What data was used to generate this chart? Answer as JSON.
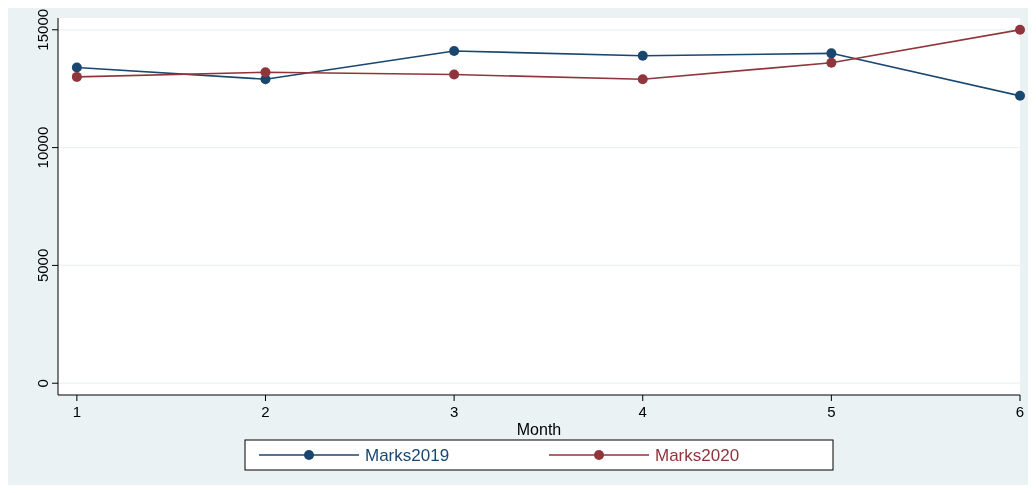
{
  "chart_data": {
    "type": "line",
    "xlabel": "Month",
    "x": [
      1,
      2,
      3,
      4,
      5,
      6
    ],
    "series": [
      {
        "name": "Marks2019",
        "color": "#1a476f",
        "values": [
          13400,
          12900,
          14100,
          13900,
          14000,
          12200
        ]
      },
      {
        "name": "Marks2020",
        "color": "#90353b",
        "values": [
          13000,
          13200,
          13100,
          12900,
          13600,
          15000
        ]
      }
    ],
    "xlim": [
      0.9,
      6
    ],
    "xticks": [
      1,
      2,
      3,
      4,
      5,
      6
    ],
    "ylim": [
      -500,
      15500
    ],
    "yticks": [
      0,
      5000,
      10000,
      15000
    ],
    "grid": "y",
    "legend": "bottom",
    "marker": "circle",
    "line_style": "solid"
  }
}
